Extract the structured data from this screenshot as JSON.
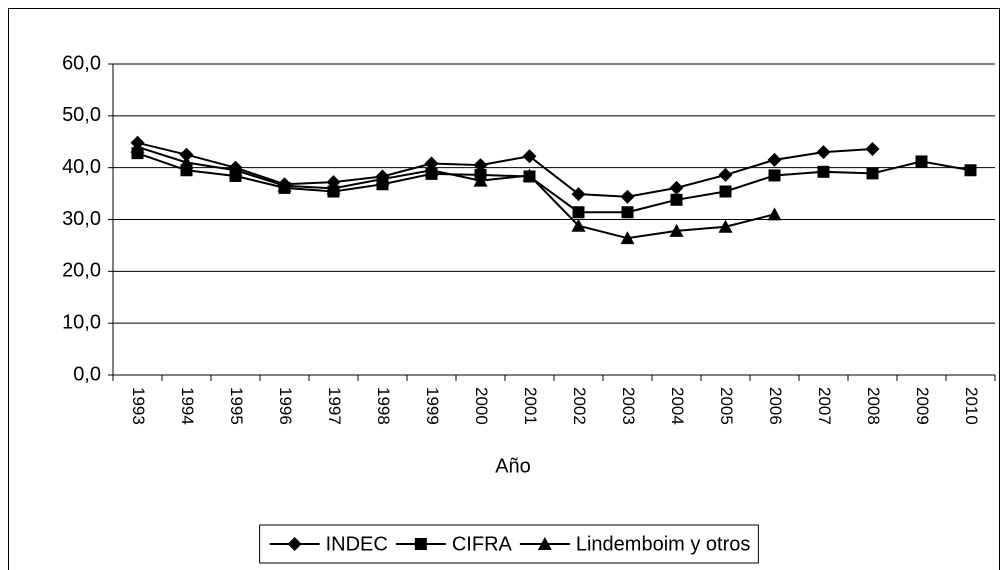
{
  "chart_data": {
    "type": "line",
    "x_label": "Año",
    "categories": [
      "1993",
      "1994",
      "1995",
      "1996",
      "1997",
      "1998",
      "1999",
      "2000",
      "2001",
      "2002",
      "2003",
      "2004",
      "2005",
      "2006",
      "2007",
      "2008",
      "2009",
      "2010"
    ],
    "series": [
      {
        "name": "INDEC",
        "color": "#000000",
        "marker": "diamond",
        "values": [
          44.8,
          42.5,
          40.0,
          36.8,
          37.2,
          38.3,
          40.8,
          40.5,
          42.2,
          34.9,
          34.4,
          36.1,
          38.6,
          41.5,
          43.0,
          43.6,
          null,
          null
        ]
      },
      {
        "name": "CIFRA",
        "color": "#000000",
        "marker": "square",
        "values": [
          42.8,
          39.5,
          38.4,
          36.1,
          35.4,
          36.8,
          38.8,
          38.6,
          38.3,
          31.4,
          31.4,
          33.8,
          35.4,
          38.5,
          39.2,
          38.9,
          41.2,
          39.5
        ]
      },
      {
        "name": "Lindemboim y otros",
        "color": "#000000",
        "marker": "triangle",
        "values": [
          44.0,
          41.0,
          39.5,
          36.5,
          36.0,
          37.8,
          39.5,
          37.5,
          38.5,
          28.8,
          26.4,
          27.8,
          28.6,
          31.0,
          null,
          null,
          null,
          null
        ]
      }
    ],
    "ylim": [
      0,
      60
    ],
    "yticks": [
      {
        "value": 0,
        "label": "0,0"
      },
      {
        "value": 10,
        "label": "10,0"
      },
      {
        "value": 20,
        "label": "20,0"
      },
      {
        "value": 30,
        "label": "30,0"
      },
      {
        "value": 40,
        "label": "40,0"
      },
      {
        "value": 50,
        "label": "50,0"
      },
      {
        "value": 60,
        "label": "60,0"
      }
    ],
    "grid": true,
    "legend": "bottom"
  }
}
